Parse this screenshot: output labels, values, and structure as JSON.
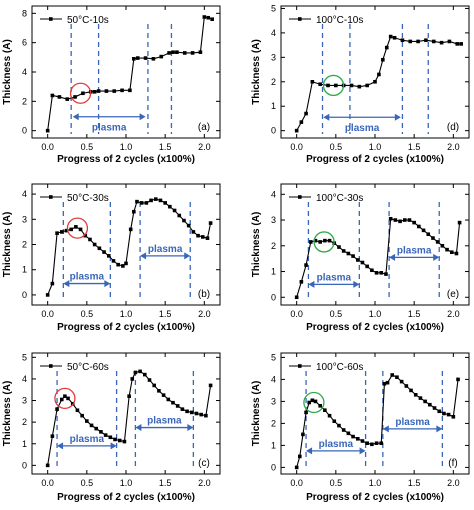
{
  "chart_data": [
    {
      "id": "a",
      "type": "line",
      "panel_tag": "(a)",
      "legend": "50°C-10s",
      "xlabel": "Progress of 2 cycles (x100%)",
      "ylabel": "Thickness (A)",
      "xlim": [
        -0.2,
        2.2
      ],
      "ylim": [
        -0.5,
        8.5
      ],
      "xticks": [
        "0.0",
        "0.5",
        "1.0",
        "1.5",
        "2.0"
      ],
      "yticks": [
        "0",
        "2",
        "4",
        "6",
        "8"
      ],
      "series": [
        {
          "x": [
            0,
            0.06,
            0.15,
            0.25,
            0.35,
            0.45,
            0.55,
            0.6,
            0.65,
            0.75,
            0.85,
            0.95,
            1.05,
            1.1,
            1.15,
            1.25,
            1.35,
            1.45,
            1.55,
            1.6,
            1.65,
            1.75,
            1.85,
            1.95,
            2.0,
            2.05,
            2.1
          ],
          "values": [
            0,
            2.4,
            2.3,
            2.15,
            2.3,
            2.55,
            2.65,
            2.65,
            2.7,
            2.7,
            2.7,
            2.75,
            2.75,
            4.9,
            4.95,
            4.95,
            4.9,
            5.05,
            5.3,
            5.35,
            5.35,
            5.3,
            5.3,
            5.35,
            7.75,
            7.7,
            7.6
          ]
        }
      ],
      "plasma_lines": [
        0.3,
        0.65,
        1.28,
        1.58
      ],
      "plasma_label": "plasma",
      "plasma_arrow": {
        "from": 0.32,
        "to": 1.25,
        "y": 0.95
      },
      "circle": {
        "x": 0.42,
        "y": 2.55,
        "color": "#e03a3a"
      }
    },
    {
      "id": "d",
      "type": "line",
      "panel_tag": "(d)",
      "legend": "100°C-10s",
      "xlabel": "Progress of 2 cycles (x100%)",
      "ylabel": "Thickness (A)",
      "xlim": [
        -0.2,
        2.2
      ],
      "ylim": [
        -0.3,
        5.1
      ],
      "xticks": [
        "0.0",
        "0.5",
        "1.0",
        "1.5",
        "2.0"
      ],
      "yticks": [
        "0",
        "1",
        "2",
        "3",
        "4",
        "5"
      ],
      "series": [
        {
          "x": [
            0,
            0.06,
            0.12,
            0.2,
            0.3,
            0.4,
            0.5,
            0.6,
            0.7,
            0.8,
            0.9,
            1.0,
            1.05,
            1.1,
            1.15,
            1.2,
            1.25,
            1.35,
            1.45,
            1.55,
            1.65,
            1.75,
            1.85,
            1.95,
            2.05,
            2.1
          ],
          "values": [
            0,
            0.35,
            0.7,
            2.0,
            1.9,
            1.85,
            1.85,
            1.85,
            1.85,
            1.8,
            1.85,
            2.0,
            2.3,
            2.9,
            3.4,
            3.85,
            3.8,
            3.7,
            3.65,
            3.65,
            3.7,
            3.65,
            3.6,
            3.65,
            3.55,
            3.55
          ]
        }
      ],
      "plasma_lines": [
        0.33,
        0.68,
        1.35,
        1.68
      ],
      "plasma_label": "plasma",
      "plasma_arrow": {
        "from": 0.34,
        "to": 1.33,
        "y": 0.55
      },
      "circle": {
        "x": 0.47,
        "y": 1.85,
        "color": "#2ea84a"
      }
    },
    {
      "id": "b",
      "type": "line",
      "panel_tag": "(b)",
      "legend": "50°C-30s",
      "xlabel": "Progress of 2 cycles (x100%)",
      "ylabel": "Thickness (A)",
      "xlim": [
        -0.2,
        2.2
      ],
      "ylim": [
        -0.4,
        4.4
      ],
      "xticks": [
        "0.0",
        "0.5",
        "1.0",
        "1.5",
        "2.0"
      ],
      "yticks": [
        "0",
        "1",
        "2",
        "3",
        "4"
      ],
      "series": [
        {
          "x": [
            0,
            0.06,
            0.12,
            0.18,
            0.24,
            0.3,
            0.36,
            0.42,
            0.48,
            0.54,
            0.6,
            0.66,
            0.72,
            0.78,
            0.84,
            0.9,
            0.96,
            1.0,
            1.06,
            1.1,
            1.14,
            1.2,
            1.26,
            1.32,
            1.38,
            1.44,
            1.5,
            1.56,
            1.62,
            1.68,
            1.74,
            1.8,
            1.86,
            1.92,
            1.98,
            2.04,
            2.08
          ],
          "values": [
            0,
            0.45,
            2.45,
            2.5,
            2.55,
            2.6,
            2.7,
            2.6,
            2.35,
            2.2,
            2.0,
            1.85,
            1.7,
            1.55,
            1.35,
            1.2,
            1.15,
            1.25,
            2.6,
            3.3,
            3.7,
            3.65,
            3.65,
            3.75,
            3.8,
            3.75,
            3.65,
            3.5,
            3.35,
            3.15,
            2.95,
            2.75,
            2.5,
            2.35,
            2.3,
            2.25,
            2.85
          ]
        }
      ],
      "plasma_lines": [
        0.2,
        0.8,
        1.18,
        1.82
      ],
      "plasma_label": "plasma",
      "plasma_arrows": [
        {
          "from": 0.2,
          "to": 0.8,
          "y": 0.45
        },
        {
          "from": 1.18,
          "to": 1.82,
          "y": 1.55
        }
      ],
      "circle": {
        "x": 0.38,
        "y": 2.65,
        "color": "#e03a3a"
      }
    },
    {
      "id": "e",
      "type": "line",
      "panel_tag": "(e)",
      "legend": "100°C-30s",
      "xlabel": "Progress of 2 cycles (x100%)",
      "ylabel": "Thickness (A)",
      "xlim": [
        -0.2,
        2.2
      ],
      "ylim": [
        -0.3,
        4.4
      ],
      "xticks": [
        "0.0",
        "0.5",
        "1.0",
        "1.5",
        "2.0"
      ],
      "yticks": [
        "0",
        "1",
        "2",
        "3",
        "4"
      ],
      "series": [
        {
          "x": [
            0,
            0.06,
            0.12,
            0.18,
            0.24,
            0.3,
            0.36,
            0.42,
            0.48,
            0.54,
            0.6,
            0.66,
            0.72,
            0.78,
            0.84,
            0.9,
            0.96,
            1.02,
            1.08,
            1.14,
            1.2,
            1.26,
            1.32,
            1.38,
            1.44,
            1.5,
            1.56,
            1.62,
            1.68,
            1.74,
            1.8,
            1.86,
            1.92,
            1.98,
            2.04,
            2.08
          ],
          "values": [
            0,
            0.6,
            1.25,
            2.15,
            2.2,
            2.15,
            2.2,
            2.2,
            2.1,
            1.95,
            1.8,
            1.7,
            1.6,
            1.45,
            1.35,
            1.2,
            1.05,
            0.95,
            0.95,
            0.9,
            3.05,
            3.0,
            2.95,
            3.0,
            3.0,
            2.9,
            2.75,
            2.6,
            2.45,
            2.3,
            2.15,
            2.0,
            1.85,
            1.75,
            1.7,
            2.9
          ]
        }
      ],
      "plasma_lines": [
        0.15,
        0.8,
        1.18,
        1.82
      ],
      "plasma_label": "plasma",
      "plasma_arrows": [
        {
          "from": 0.15,
          "to": 0.8,
          "y": 0.5
        },
        {
          "from": 1.18,
          "to": 1.82,
          "y": 1.55
        }
      ],
      "circle": {
        "x": 0.35,
        "y": 2.15,
        "color": "#2ea84a"
      }
    },
    {
      "id": "c",
      "type": "line",
      "panel_tag": "(c)",
      "legend": "50°C-60s",
      "xlabel": "Progress of 2 cycles (x100%)",
      "ylabel": "Thickness (A)",
      "xlim": [
        -0.2,
        2.2
      ],
      "ylim": [
        -0.4,
        5.2
      ],
      "xticks": [
        "0.0",
        "0.5",
        "1.0",
        "1.5",
        "2.0"
      ],
      "yticks": [
        "0",
        "1",
        "2",
        "3",
        "4",
        "5"
      ],
      "series": [
        {
          "x": [
            0,
            0.06,
            0.12,
            0.18,
            0.22,
            0.26,
            0.32,
            0.38,
            0.44,
            0.5,
            0.56,
            0.62,
            0.68,
            0.74,
            0.8,
            0.86,
            0.92,
            0.98,
            1.04,
            1.08,
            1.12,
            1.18,
            1.24,
            1.3,
            1.36,
            1.42,
            1.48,
            1.54,
            1.6,
            1.66,
            1.72,
            1.78,
            1.84,
            1.9,
            1.96,
            2.02,
            2.08
          ],
          "values": [
            0,
            1.35,
            2.6,
            3.05,
            3.2,
            3.1,
            2.85,
            2.55,
            2.3,
            2.05,
            1.85,
            1.7,
            1.55,
            1.4,
            1.3,
            1.2,
            1.15,
            1.1,
            3.2,
            4.0,
            4.3,
            4.35,
            4.2,
            3.95,
            3.7,
            3.45,
            3.25,
            3.05,
            2.9,
            2.75,
            2.6,
            2.5,
            2.45,
            2.4,
            2.35,
            2.3,
            3.7
          ]
        }
      ],
      "plasma_lines": [
        0.12,
        0.88,
        1.12,
        1.86
      ],
      "plasma_label": "plasma",
      "plasma_arrows": [
        {
          "from": 0.12,
          "to": 0.88,
          "y": 0.9
        },
        {
          "from": 1.12,
          "to": 1.86,
          "y": 1.75
        }
      ],
      "circle": {
        "x": 0.22,
        "y": 3.1,
        "color": "#e03a3a"
      }
    },
    {
      "id": "f",
      "type": "line",
      "panel_tag": "(f)",
      "legend": "100°C-60s",
      "xlabel": "Progress of 2 cycles (x100%)",
      "ylabel": "Thickness (A)",
      "xlim": [
        -0.2,
        2.2
      ],
      "ylim": [
        -0.3,
        5.2
      ],
      "xticks": [
        "0.0",
        "0.5",
        "1.0",
        "1.5",
        "2.0"
      ],
      "yticks": [
        "0",
        "1",
        "2",
        "3",
        "4",
        "5"
      ],
      "series": [
        {
          "x": [
            0,
            0.04,
            0.08,
            0.12,
            0.16,
            0.2,
            0.24,
            0.3,
            0.36,
            0.42,
            0.48,
            0.54,
            0.6,
            0.66,
            0.72,
            0.78,
            0.84,
            0.9,
            0.96,
            1.02,
            1.08,
            1.12,
            1.16,
            1.22,
            1.28,
            1.34,
            1.4,
            1.46,
            1.52,
            1.58,
            1.64,
            1.7,
            1.76,
            1.82,
            1.88,
            1.94,
            2.0,
            2.06
          ],
          "values": [
            0,
            0.5,
            1.5,
            2.5,
            2.95,
            3.05,
            3.0,
            2.8,
            2.6,
            2.35,
            2.1,
            1.9,
            1.7,
            1.55,
            1.4,
            1.3,
            1.2,
            1.1,
            1.05,
            1.1,
            1.1,
            3.8,
            3.85,
            4.2,
            4.1,
            3.9,
            3.7,
            3.5,
            3.3,
            3.15,
            3.0,
            2.85,
            2.7,
            2.55,
            2.45,
            2.4,
            2.3,
            4.0
          ]
        }
      ],
      "plasma_lines": [
        0.12,
        0.88,
        1.1,
        1.86
      ],
      "plasma_label": "plasma",
      "plasma_arrows": [
        {
          "from": 0.12,
          "to": 0.88,
          "y": 0.75
        },
        {
          "from": 1.1,
          "to": 1.86,
          "y": 1.75
        }
      ],
      "circle": {
        "x": 0.22,
        "y": 2.95,
        "color": "#2ea84a"
      }
    }
  ],
  "colors": {
    "line": "#000000",
    "plasma": "#3a66b8"
  }
}
